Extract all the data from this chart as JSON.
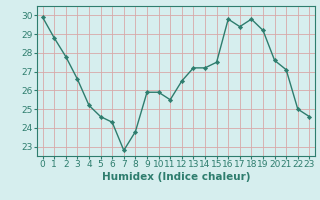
{
  "x": [
    0,
    1,
    2,
    3,
    4,
    5,
    6,
    7,
    8,
    9,
    10,
    11,
    12,
    13,
    14,
    15,
    16,
    17,
    18,
    19,
    20,
    21,
    22,
    23
  ],
  "y": [
    29.9,
    28.8,
    27.8,
    26.6,
    25.2,
    24.6,
    24.3,
    22.8,
    23.8,
    25.9,
    25.9,
    25.5,
    26.5,
    27.2,
    27.2,
    27.5,
    29.8,
    29.4,
    29.8,
    29.2,
    27.6,
    27.1,
    25.0,
    24.6
  ],
  "line_color": "#2e7d6e",
  "marker": "D",
  "marker_size": 2.2,
  "bg_color": "#d6eeee",
  "grid_color": "#d8a8a8",
  "xlabel": "Humidex (Indice chaleur)",
  "ylim": [
    22.5,
    30.5
  ],
  "xlim": [
    -0.5,
    23.5
  ],
  "yticks": [
    23,
    24,
    25,
    26,
    27,
    28,
    29,
    30
  ],
  "xticks": [
    0,
    1,
    2,
    3,
    4,
    5,
    6,
    7,
    8,
    9,
    10,
    11,
    12,
    13,
    14,
    15,
    16,
    17,
    18,
    19,
    20,
    21,
    22,
    23
  ],
  "xlabel_fontsize": 7.5,
  "tick_fontsize": 6.5,
  "line_width": 1.0
}
